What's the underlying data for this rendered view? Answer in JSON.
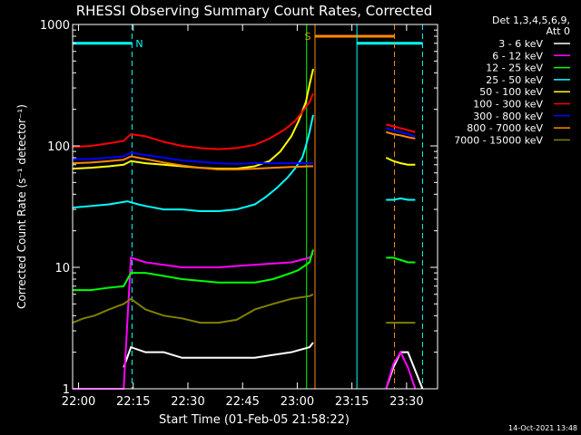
{
  "chart_data": {
    "type": "line",
    "title": "RHESSI Observing Summary Count Rates, Corrected",
    "xlabel": "Start Time (01-Feb-05 21:58:22)",
    "ylabel": "Corrected Count Rate (s⁻¹ detector⁻¹)",
    "yscale": "log",
    "ylim": [
      1,
      1000
    ],
    "xlim_minutes": [
      21.5,
      22.0
    ],
    "xlim_clock": [
      "21:58:22",
      "23:38:30"
    ],
    "xticks": [
      {
        "label": "22:00",
        "minutes": 1.63
      },
      {
        "label": "22:15",
        "minutes": 16.63
      },
      {
        "label": "22:30",
        "minutes": 31.63
      },
      {
        "label": "22:45",
        "minutes": 46.63
      },
      {
        "label": "23:00",
        "minutes": 61.63
      },
      {
        "label": "23:15",
        "minutes": 76.63
      },
      {
        "label": "23:30",
        "minutes": 91.63
      }
    ],
    "yticks": [
      {
        "label": "1",
        "value": 1
      },
      {
        "label": "10",
        "value": 10
      },
      {
        "label": "100",
        "value": 100
      },
      {
        "label": "1000",
        "value": 1000
      }
    ],
    "legend": {
      "placement": "top-right",
      "header": [
        "Det 1,3,4,5,6,9,",
        "Att 0"
      ]
    },
    "series": [
      {
        "name": "3 - 6 keV",
        "color": "#ffffff",
        "x": [
          0,
          2,
          14,
          16,
          20,
          25,
          30,
          40,
          50,
          55,
          60,
          65,
          66,
          86,
          88,
          90,
          92,
          96
        ],
        "values": [
          1,
          1,
          1.5,
          2.2,
          2,
          2,
          1.8,
          1.8,
          1.8,
          1.9,
          2,
          2.2,
          2.4,
          1,
          1.5,
          2,
          2,
          1
        ]
      },
      {
        "name": "6 - 12 keV",
        "color": "#ff00ff",
        "x": [
          0,
          10,
          14,
          16,
          20,
          30,
          40,
          50,
          60,
          65,
          66,
          86,
          88,
          90,
          92,
          94
        ],
        "values": [
          1,
          1,
          1,
          12,
          11,
          10,
          10,
          10.5,
          11,
          12,
          13,
          1,
          1.6,
          2,
          1.5,
          1
        ]
      },
      {
        "name": "12 - 25 keV",
        "color": "#00ff00",
        "x": [
          0,
          5,
          10,
          14,
          16,
          20,
          25,
          30,
          40,
          50,
          55,
          60,
          62,
          65,
          66,
          86,
          88,
          90,
          92,
          94
        ],
        "values": [
          6.5,
          6.5,
          6.8,
          7,
          9,
          9,
          8.5,
          8,
          7.5,
          7.5,
          8,
          9,
          9.5,
          11,
          14,
          12,
          12,
          11.5,
          11,
          11
        ]
      },
      {
        "name": "25 - 50 keV",
        "color": "#00ffff",
        "x": [
          0,
          5,
          10,
          15,
          18,
          20,
          25,
          30,
          35,
          40,
          45,
          50,
          53,
          56,
          59,
          61,
          63,
          64,
          65,
          66,
          86,
          88,
          90,
          92,
          94
        ],
        "values": [
          31,
          32,
          33,
          35,
          33,
          32,
          30,
          30,
          29,
          29,
          30,
          33,
          38,
          45,
          55,
          65,
          80,
          100,
          130,
          180,
          36,
          36,
          37,
          36,
          36
        ]
      },
      {
        "name": "50 - 100 keV",
        "color": "#ffff00",
        "x": [
          0,
          5,
          10,
          14,
          16,
          20,
          25,
          30,
          35,
          40,
          45,
          50,
          54,
          57,
          60,
          62,
          64,
          65,
          66,
          86,
          88,
          90,
          92,
          94
        ],
        "values": [
          65,
          66,
          68,
          70,
          75,
          72,
          70,
          68,
          66,
          65,
          65,
          68,
          75,
          90,
          120,
          160,
          230,
          320,
          430,
          80,
          75,
          72,
          70,
          70
        ]
      },
      {
        "name": "100 - 300 keV",
        "color": "#ff0000",
        "x": [
          0,
          5,
          10,
          14,
          16,
          20,
          25,
          30,
          35,
          40,
          45,
          50,
          54,
          58,
          61,
          63,
          65,
          66,
          86,
          88,
          90,
          92,
          94
        ],
        "values": [
          98,
          100,
          105,
          110,
          125,
          120,
          108,
          100,
          96,
          94,
          96,
          102,
          115,
          135,
          160,
          190,
          230,
          270,
          150,
          145,
          140,
          135,
          130
        ]
      },
      {
        "name": "300 - 800 keV",
        "color": "#0000ff",
        "x": [
          0,
          5,
          10,
          14,
          16,
          20,
          25,
          30,
          35,
          40,
          45,
          50,
          55,
          60,
          65,
          66,
          86,
          88,
          90,
          92,
          94
        ],
        "values": [
          78,
          78,
          80,
          82,
          88,
          84,
          80,
          76,
          74,
          72,
          71,
          72,
          72,
          72,
          72,
          72,
          140,
          135,
          130,
          125,
          120
        ]
      },
      {
        "name": "800 - 7000 keV",
        "color": "#ff8800",
        "x": [
          0,
          5,
          10,
          14,
          16,
          20,
          25,
          30,
          35,
          40,
          45,
          50,
          55,
          60,
          65,
          66,
          86,
          88,
          90,
          92,
          94
        ],
        "values": [
          72,
          73,
          75,
          77,
          82,
          78,
          73,
          69,
          66,
          64,
          64,
          65,
          66,
          67,
          68,
          68,
          130,
          125,
          122,
          118,
          115
        ]
      },
      {
        "name": "7000 - 15000 keV",
        "color": "#808000",
        "x": [
          0,
          3,
          6,
          10,
          14,
          16,
          20,
          25,
          30,
          35,
          40,
          45,
          50,
          55,
          60,
          65,
          66,
          86,
          88,
          90,
          92,
          94
        ],
        "values": [
          3.5,
          3.8,
          4,
          4.5,
          5,
          5.5,
          4.5,
          4,
          3.8,
          3.5,
          3.5,
          3.7,
          4.5,
          5,
          5.5,
          5.8,
          6,
          3.5,
          3.5,
          3.5,
          3.5,
          3.5
        ]
      }
    ],
    "flags": [
      {
        "label": "N",
        "color": "#00ffff",
        "level": 700,
        "start": 0,
        "end": 16.3
      },
      {
        "label": "S",
        "color": "#ff8800",
        "level": 800,
        "start": 66.5,
        "end": 88.3
      },
      {
        "label": "",
        "color": "#00ffff",
        "level": 700,
        "start": 78,
        "end": 96
      }
    ],
    "vertical_lines": [
      {
        "x": 16.3,
        "color": "#00ffff",
        "style": "dashed"
      },
      {
        "x": 64.2,
        "color": "#00ff00",
        "style": "solid"
      },
      {
        "x": 66.5,
        "color": "#ff8800",
        "style": "solid"
      },
      {
        "x": 78.0,
        "color": "#00ffff",
        "style": "solid"
      },
      {
        "x": 88.3,
        "color": "#ff8800",
        "style": "dashed"
      },
      {
        "x": 96.0,
        "color": "#00ffff",
        "style": "dashed"
      }
    ],
    "footer_date": "14-Oct-2021 13:48"
  }
}
